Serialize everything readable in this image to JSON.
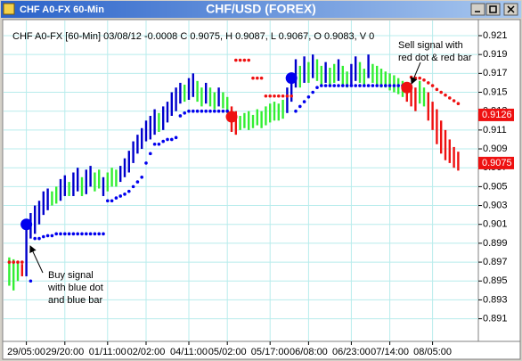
{
  "chart_data": {
    "type": "ohlc",
    "window_title": "CHF A0-FX 60-Min",
    "title": "CHF/USD (FOREX)",
    "info": "CHF A0-FX [60-Min] 03/08/12 -0.0008 C 0.9075, H 0.9087, L 0.9067, O 0.9083, V 0",
    "categories": [
      null,
      null,
      null,
      null,
      "29/05:00",
      null,
      null,
      null,
      null,
      null,
      null,
      null,
      null,
      "29/20:00",
      null,
      null,
      null,
      null,
      null,
      null,
      null,
      null,
      null,
      "01/11:00",
      null,
      null,
      null,
      null,
      null,
      null,
      null,
      null,
      "02/02:00",
      null,
      null,
      null,
      null,
      null,
      null,
      null,
      null,
      null,
      "04/11:00",
      null,
      null,
      null,
      null,
      null,
      null,
      null,
      null,
      "05/02:00",
      null,
      null,
      null,
      null,
      null,
      null,
      null,
      null,
      null,
      "05/17:00",
      null,
      null,
      null,
      null,
      null,
      null,
      null,
      null,
      "06/08:00",
      null,
      null,
      null,
      null,
      null,
      null,
      null,
      null,
      null,
      "06/23:00",
      null,
      null,
      null,
      null,
      null,
      null,
      null,
      null,
      "07/14:00",
      null,
      null,
      null,
      null,
      null,
      null,
      null,
      null,
      null,
      "08/05:00",
      null,
      null,
      null,
      null,
      null,
      null
    ],
    "high": [
      0.8975,
      0.8973,
      0.897,
      0.8968,
      0.9012,
      0.9022,
      0.903,
      0.9035,
      0.9045,
      0.9048,
      0.9045,
      0.905,
      0.9058,
      0.9062,
      0.9055,
      0.9065,
      0.907,
      0.906,
      0.9068,
      0.9072,
      0.9065,
      0.9068,
      0.906,
      0.9065,
      0.907,
      0.9068,
      0.9072,
      0.908,
      0.9088,
      0.9098,
      0.9105,
      0.9112,
      0.912,
      0.9125,
      0.9132,
      0.9128,
      0.9135,
      0.914,
      0.915,
      0.9155,
      0.916,
      0.9158,
      0.9165,
      0.917,
      0.9162,
      0.9155,
      0.916,
      0.9155,
      0.915,
      0.9155,
      0.915,
      0.9145,
      0.9135,
      0.913,
      0.9125,
      0.9128,
      0.913,
      0.9126,
      0.9132,
      0.913,
      0.9135,
      0.9138,
      0.914,
      0.9138,
      0.9142,
      0.9155,
      0.917,
      0.9185,
      0.9178,
      0.9188,
      0.9182,
      0.919,
      0.9185,
      0.9178,
      0.9182,
      0.9176,
      0.918,
      0.9185,
      0.9178,
      0.9172,
      0.918,
      0.9188,
      0.9182,
      0.9175,
      0.919,
      0.918,
      0.9178,
      0.9175,
      0.9172,
      0.917,
      0.9168,
      0.9165,
      0.9162,
      0.916,
      0.9158,
      0.9155,
      0.9162,
      0.9155,
      0.915,
      0.914,
      0.9132,
      0.912,
      0.911,
      0.91,
      0.9092,
      0.9087
    ],
    "low": [
      0.8945,
      0.894,
      0.895,
      0.8955,
      0.8955,
      0.8995,
      0.9,
      0.901,
      0.902,
      0.9025,
      0.903,
      0.9032,
      0.9035,
      0.904,
      0.904,
      0.904,
      0.9045,
      0.904,
      0.9042,
      0.905,
      0.9045,
      0.9048,
      0.904,
      0.9045,
      0.905,
      0.905,
      0.9055,
      0.906,
      0.9065,
      0.9075,
      0.9085,
      0.909,
      0.9098,
      0.91,
      0.9105,
      0.9108,
      0.911,
      0.9118,
      0.9125,
      0.913,
      0.9138,
      0.914,
      0.9142,
      0.9145,
      0.914,
      0.9135,
      0.9138,
      0.9135,
      0.9132,
      0.9135,
      0.9133,
      0.9128,
      0.9108,
      0.9105,
      0.911,
      0.9112,
      0.911,
      0.9112,
      0.9115,
      0.9112,
      0.9115,
      0.9118,
      0.912,
      0.912,
      0.9122,
      0.9128,
      0.914,
      0.9155,
      0.9155,
      0.916,
      0.916,
      0.9165,
      0.9162,
      0.9158,
      0.916,
      0.9158,
      0.916,
      0.9162,
      0.9158,
      0.9155,
      0.9158,
      0.9162,
      0.916,
      0.9158,
      0.9165,
      0.916,
      0.9158,
      0.9155,
      0.9155,
      0.9152,
      0.915,
      0.9148,
      0.9145,
      0.914,
      0.9135,
      0.913,
      0.9138,
      0.9135,
      0.912,
      0.911,
      0.9095,
      0.9085,
      0.9078,
      0.9075,
      0.907,
      0.9067
    ],
    "palette": {
      "g": "#33ee33",
      "b": "#0000cc",
      "r": "#ee1111"
    },
    "bar_colors": [
      "g",
      "g",
      "g",
      "r",
      "b",
      "b",
      "b",
      "b",
      "b",
      "b",
      "g",
      "g",
      "b",
      "b",
      "g",
      "b",
      "b",
      "g",
      "b",
      "b",
      "g",
      "g",
      "b",
      "g",
      "g",
      "g",
      "b",
      "b",
      "b",
      "b",
      "b",
      "b",
      "b",
      "b",
      "b",
      "g",
      "b",
      "b",
      "b",
      "b",
      "b",
      "g",
      "b",
      "b",
      "g",
      "g",
      "b",
      "g",
      "g",
      "b",
      "g",
      "g",
      "r",
      "r",
      "g",
      "g",
      "g",
      "g",
      "g",
      "g",
      "g",
      "g",
      "g",
      "g",
      "g",
      "b",
      "b",
      "b",
      "g",
      "b",
      "g",
      "b",
      "g",
      "g",
      "b",
      "g",
      "g",
      "b",
      "g",
      "g",
      "b",
      "b",
      "g",
      "g",
      "b",
      "g",
      "g",
      "g",
      "g",
      "g",
      "g",
      "g",
      "g",
      "r",
      "r",
      "r",
      "g",
      "g",
      "r",
      "r",
      "r",
      "r",
      "r",
      "r",
      "r",
      "r"
    ],
    "series": [
      {
        "style": "dots",
        "color": "#0000ee",
        "values": [
          null,
          null,
          null,
          null,
          null,
          0.895,
          0.8995,
          0.8995,
          0.8997,
          0.8998,
          0.8998,
          0.9,
          0.9,
          0.9,
          0.9,
          0.9,
          0.9,
          0.9,
          0.9,
          0.9,
          0.9,
          0.9,
          0.9,
          0.9035,
          0.9035,
          0.9038,
          0.904,
          0.9042,
          0.9045,
          0.905,
          0.9055,
          0.906,
          0.9075,
          0.9085,
          0.9095,
          0.9095,
          0.9098,
          0.91,
          0.91,
          0.9102,
          0.9125,
          0.9128,
          0.913,
          0.913,
          0.913,
          0.913,
          0.913,
          0.913,
          0.913,
          0.913,
          0.913,
          0.913,
          null,
          null,
          null,
          null,
          null,
          null,
          null,
          null,
          null,
          null,
          null,
          null,
          null,
          null,
          null,
          0.913,
          0.9135,
          0.914,
          0.9145,
          0.915,
          0.9155,
          0.9157,
          0.9157,
          0.9157,
          0.9157,
          0.9157,
          0.9157,
          0.9157,
          0.9157,
          0.9157,
          0.9157,
          0.9157,
          0.9157,
          0.9157,
          0.9157,
          0.9157,
          0.9157,
          0.9157,
          0.9157,
          0.9157,
          0.9157,
          null,
          null,
          null,
          null,
          null,
          null,
          null,
          null,
          null,
          null,
          null,
          null,
          null
        ]
      },
      {
        "style": "dots",
        "color": "#ee1111",
        "values": [
          0.897,
          0.897,
          0.897,
          0.897,
          null,
          null,
          null,
          null,
          null,
          null,
          null,
          null,
          null,
          null,
          null,
          null,
          null,
          null,
          null,
          null,
          null,
          null,
          null,
          null,
          null,
          null,
          null,
          null,
          null,
          null,
          null,
          null,
          null,
          null,
          null,
          null,
          null,
          null,
          null,
          null,
          null,
          null,
          null,
          null,
          null,
          null,
          null,
          null,
          null,
          null,
          null,
          null,
          null,
          0.9184,
          0.9184,
          0.9184,
          0.9184,
          0.9165,
          0.9165,
          0.9165,
          0.9146,
          0.9146,
          0.9146,
          0.9146,
          0.9146,
          0.9146,
          0.9146,
          null,
          null,
          null,
          null,
          null,
          null,
          null,
          null,
          null,
          null,
          null,
          null,
          null,
          null,
          null,
          null,
          null,
          null,
          null,
          null,
          null,
          null,
          null,
          null,
          null,
          null,
          null,
          0.9166,
          0.9165,
          0.9165,
          0.9163,
          0.916,
          0.9157,
          0.9153,
          0.915,
          0.9147,
          0.9144,
          0.9141,
          0.9138
        ]
      },
      {
        "style": "signal",
        "color": "#0000ee",
        "values": [
          null,
          null,
          null,
          null,
          0.901,
          null,
          null,
          null,
          null,
          null,
          null,
          null,
          null,
          null,
          null,
          null,
          null,
          null,
          null,
          null,
          null,
          null,
          null,
          null,
          null,
          null,
          null,
          null,
          null,
          null,
          null,
          null,
          null,
          null,
          null,
          null,
          null,
          null,
          null,
          null,
          null,
          null,
          null,
          null,
          null,
          null,
          null,
          null,
          null,
          null,
          null,
          null,
          null,
          null,
          null,
          null,
          null,
          null,
          null,
          null,
          null,
          null,
          null,
          null,
          null,
          null,
          0.9165,
          null,
          null,
          null,
          null,
          null,
          null,
          null,
          null,
          null,
          null,
          null,
          null,
          null,
          null,
          null,
          null,
          null,
          null,
          null,
          null,
          null,
          null,
          null,
          null,
          null,
          null,
          null,
          null,
          null,
          null,
          null,
          null,
          null,
          null,
          null,
          null,
          null,
          null,
          null
        ]
      },
      {
        "style": "signal",
        "color": "#ee1111",
        "values": [
          null,
          null,
          null,
          null,
          null,
          null,
          null,
          null,
          null,
          null,
          null,
          null,
          null,
          null,
          null,
          null,
          null,
          null,
          null,
          null,
          null,
          null,
          null,
          null,
          null,
          null,
          null,
          null,
          null,
          null,
          null,
          null,
          null,
          null,
          null,
          null,
          null,
          null,
          null,
          null,
          null,
          null,
          null,
          null,
          null,
          null,
          null,
          null,
          null,
          null,
          null,
          null,
          0.9124,
          null,
          null,
          null,
          null,
          null,
          null,
          null,
          null,
          null,
          null,
          null,
          null,
          null,
          null,
          null,
          null,
          null,
          null,
          null,
          null,
          null,
          null,
          null,
          null,
          null,
          null,
          null,
          null,
          null,
          null,
          null,
          null,
          null,
          null,
          null,
          null,
          null,
          null,
          null,
          null,
          0.9155,
          null,
          null,
          null,
          null,
          null,
          null,
          null,
          null,
          null,
          null,
          null,
          null
        ]
      }
    ],
    "price_markers": [
      0.9126,
      0.9075
    ],
    "price_marker_color": "#ee1111",
    "ylim": [
      0.8886,
      0.9227
    ],
    "yticks": [
      0.891,
      0.893,
      0.895,
      0.897,
      0.899,
      0.901,
      0.903,
      0.905,
      0.907,
      0.909,
      0.911,
      0.913,
      0.915,
      0.917,
      0.919,
      0.921
    ],
    "grid": true,
    "annotations": [
      {
        "lines": [
          "Buy signal",
          "with blue dot",
          "and blue bar"
        ]
      },
      {
        "lines": [
          "Sell signal with",
          "red dot & red bar"
        ]
      }
    ]
  }
}
